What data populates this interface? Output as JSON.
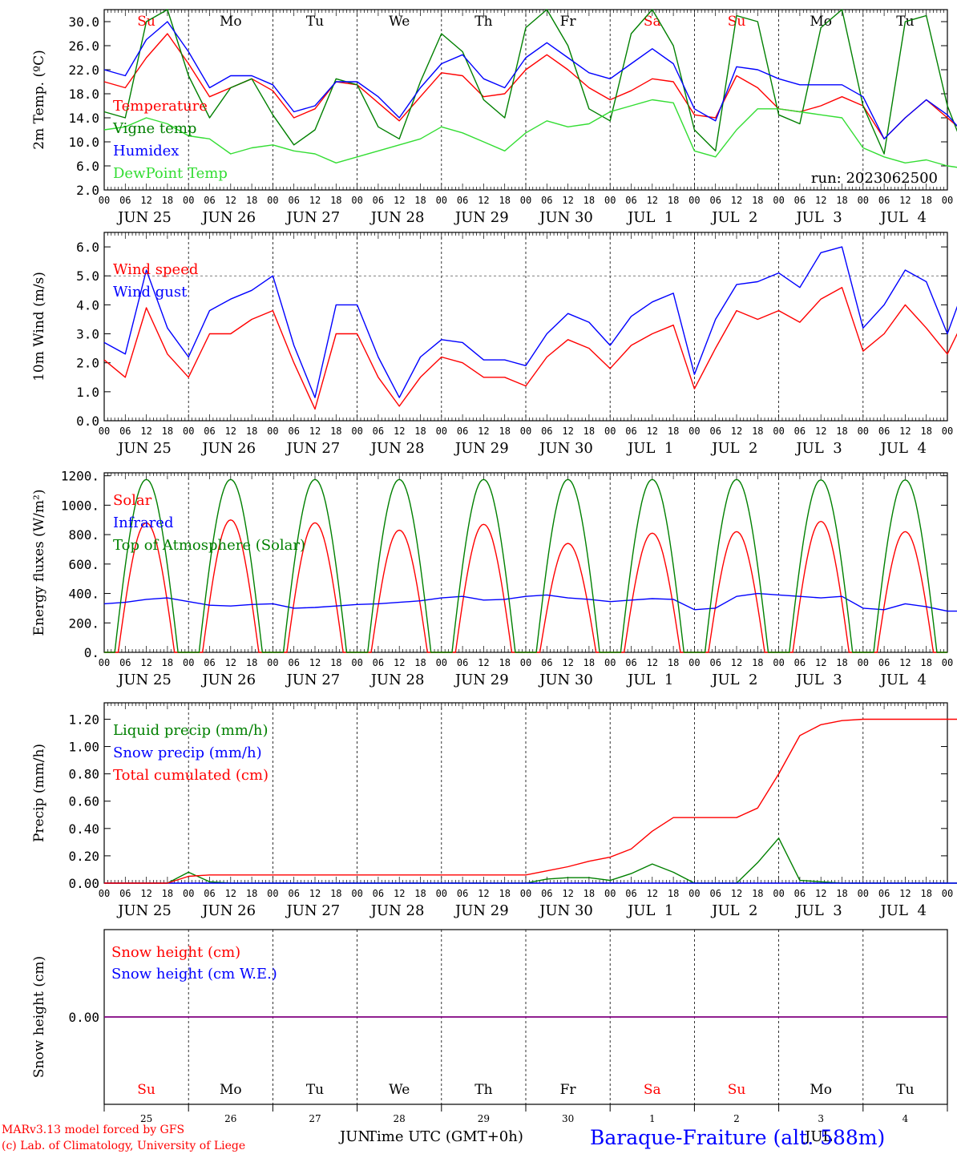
{
  "footer": {
    "model_line1": "MARv3.13 model forced by GFS",
    "model_line2": "(c) Lab. of Climatology, University of Liege",
    "xaxis_title": "Time UTC (GMT+0h)",
    "month_left": "JUN",
    "month_right": "JUL",
    "station": "Baraque-Fraiture (alt. 588m)"
  },
  "colors": {
    "red": "#ff0000",
    "green": "#008000",
    "blue": "#0000ff",
    "light_green": "#33dd33",
    "purple": "#800080",
    "axis": "#000000"
  },
  "chart_data": [
    {
      "type": "line",
      "panel": "temperature",
      "ylabel": "2m Temp. (ºC)",
      "ylim": [
        2.0,
        32.0
      ],
      "yticks": [
        2.0,
        6.0,
        10.0,
        14.0,
        18.0,
        22.0,
        26.0,
        30.0
      ],
      "yticklabels": [
        "2.0",
        "6.0",
        "10.0",
        "14.0",
        "18.0",
        "22.0",
        "26.0",
        "30.0"
      ],
      "hline": null,
      "run_label": "run: 2023062500",
      "day_names": [
        "Su",
        "Mo",
        "Tu",
        "We",
        "Th",
        "Fr",
        "Sa",
        "Su",
        "Mo",
        "Tu"
      ],
      "day_name_colors": [
        "#ff0000",
        "#000000",
        "#000000",
        "#000000",
        "#000000",
        "#000000",
        "#ff0000",
        "#ff0000",
        "#000000",
        "#000000"
      ],
      "hour_ticks": [
        "00",
        "06",
        "12",
        "18"
      ],
      "date_labels": [
        "JUN 25",
        "JUN 26",
        "JUN 27",
        "JUN 28",
        "JUN 29",
        "JUN 30",
        "JUL  1",
        "JUL  2",
        "JUL  3",
        "JUL  4"
      ],
      "x_hours_step": 6,
      "series": [
        {
          "name": "Temperature",
          "color": "#ff0000",
          "values": [
            20.0,
            19.0,
            24.0,
            28.0,
            23.0,
            17.5,
            19.0,
            20.5,
            18.5,
            14.0,
            15.5,
            20.0,
            19.5,
            16.5,
            13.5,
            17.5,
            21.5,
            21.0,
            17.5,
            18.0,
            22.0,
            24.5,
            22.0,
            19.0,
            17.0,
            18.5,
            20.5,
            20.0,
            14.5,
            14.0,
            21.0,
            19.0,
            15.5,
            15.0,
            16.0,
            17.5,
            16.0,
            10.5,
            14.0,
            17.0,
            14.0,
            11.0,
            15.0,
            20.0,
            17.5
          ]
        },
        {
          "name": "Vigne temp",
          "color": "#008000",
          "values": [
            15.0,
            14.0,
            30.0,
            32.0,
            21.0,
            14.0,
            19.0,
            20.5,
            14.5,
            9.5,
            12.0,
            20.5,
            19.5,
            12.5,
            10.5,
            20.0,
            28.0,
            25.0,
            17.0,
            14.0,
            29.0,
            32.0,
            26.0,
            15.5,
            13.5,
            28.0,
            32.0,
            26.0,
            12.0,
            8.5,
            31.0,
            30.0,
            14.5,
            13.0,
            29.0,
            32.0,
            16.0,
            8.0,
            30.0,
            31.0,
            16.0,
            7.0,
            32.0,
            30.0,
            16.0
          ]
        },
        {
          "name": "Humidex",
          "color": "#0000ff",
          "values": [
            22.0,
            21.0,
            27.0,
            30.0,
            25.0,
            19.0,
            21.0,
            21.0,
            19.5,
            15.0,
            16.0,
            20.0,
            20.0,
            17.5,
            14.0,
            19.0,
            23.0,
            24.5,
            20.5,
            19.0,
            24.0,
            26.5,
            24.0,
            21.5,
            20.5,
            23.0,
            25.5,
            23.0,
            15.5,
            13.5,
            22.5,
            22.0,
            20.5,
            19.5,
            19.5,
            19.5,
            17.5,
            10.5,
            14.0,
            17.0,
            14.5,
            10.5,
            15.0,
            21.0,
            18.5
          ]
        },
        {
          "name": "DewPoint Temp",
          "color": "#33dd33",
          "values": [
            12.0,
            12.5,
            14.0,
            13.0,
            11.0,
            10.5,
            8.0,
            9.0,
            9.5,
            8.5,
            8.0,
            6.5,
            7.5,
            8.5,
            9.5,
            10.5,
            12.5,
            11.5,
            10.0,
            8.5,
            11.5,
            13.5,
            12.5,
            13.0,
            15.0,
            16.0,
            17.0,
            16.5,
            8.5,
            7.5,
            12.0,
            15.5,
            15.5,
            15.0,
            14.5,
            14.0,
            9.0,
            7.5,
            6.5,
            7.0,
            6.0,
            5.5,
            8.0,
            12.0,
            14.0
          ]
        }
      ]
    },
    {
      "type": "line",
      "panel": "wind",
      "ylabel": "10m Wind (m/s)",
      "ylim": [
        0.0,
        6.5
      ],
      "yticks": [
        0.0,
        1.0,
        2.0,
        3.0,
        4.0,
        5.0,
        6.0
      ],
      "yticklabels": [
        "0.0",
        "1.0",
        "2.0",
        "3.0",
        "4.0",
        "5.0",
        "6.0"
      ],
      "hline": 5.0,
      "hour_ticks": [
        "00",
        "06",
        "12",
        "18"
      ],
      "date_labels": [
        "JUN 25",
        "JUN 26",
        "JUN 27",
        "JUN 28",
        "JUN 29",
        "JUN 30",
        "JUL  1",
        "JUL  2",
        "JUL  3",
        "JUL  4"
      ],
      "x_hours_step": 6,
      "series": [
        {
          "name": "Wind speed",
          "color": "#ff0000",
          "values": [
            2.1,
            1.5,
            3.9,
            2.3,
            1.5,
            3.0,
            3.0,
            3.5,
            3.8,
            2.0,
            0.4,
            3.0,
            3.0,
            1.5,
            0.5,
            1.5,
            2.2,
            2.0,
            1.5,
            1.5,
            1.2,
            2.2,
            2.8,
            2.5,
            1.8,
            2.6,
            3.0,
            3.3,
            1.1,
            2.5,
            3.8,
            3.5,
            3.8,
            3.4,
            4.2,
            4.6,
            2.4,
            3.0,
            4.0,
            3.2,
            2.3,
            3.8,
            4.9,
            4.8,
            2.0
          ]
        },
        {
          "name": "Wind gust",
          "color": "#0000ff",
          "values": [
            2.7,
            2.3,
            5.2,
            3.2,
            2.2,
            3.8,
            4.2,
            4.5,
            5.0,
            2.6,
            0.8,
            4.0,
            4.0,
            2.2,
            0.8,
            2.2,
            2.8,
            2.7,
            2.1,
            2.1,
            1.9,
            3.0,
            3.7,
            3.4,
            2.6,
            3.6,
            4.1,
            4.4,
            1.6,
            3.5,
            4.7,
            4.8,
            5.1,
            4.6,
            5.8,
            6.0,
            3.2,
            4.0,
            5.2,
            4.8,
            3.0,
            5.0,
            6.3,
            5.8,
            2.7
          ]
        }
      ]
    },
    {
      "type": "line",
      "panel": "energy",
      "ylabel": "Energy fluxes (W/m²)",
      "ylim": [
        0,
        1220
      ],
      "yticks": [
        0,
        200,
        400,
        600,
        800,
        1000,
        1200
      ],
      "yticklabels": [
        "0.",
        "200.",
        "400.",
        "600.",
        "800.",
        "1000.",
        "1200."
      ],
      "hline": null,
      "hour_ticks": [
        "00",
        "06",
        "12",
        "18"
      ],
      "date_labels": [
        "JUN 25",
        "JUN 26",
        "JUN 27",
        "JUN 28",
        "JUN 29",
        "JUN 30",
        "JUL  1",
        "JUL  2",
        "JUL  3",
        "JUL  4"
      ],
      "x_hours_step": 6,
      "series": [
        {
          "name": "Solar",
          "color": "#ff0000",
          "daily_peaks": [
            880,
            900,
            880,
            830,
            870,
            740,
            810,
            820,
            890,
            820
          ],
          "daylight_hours": [
            4,
            20
          ]
        },
        {
          "name": "Infrared",
          "color": "#0000ff",
          "values": [
            330,
            340,
            360,
            370,
            345,
            320,
            315,
            325,
            330,
            300,
            305,
            315,
            325,
            330,
            340,
            350,
            370,
            380,
            355,
            360,
            380,
            390,
            370,
            360,
            345,
            355,
            365,
            360,
            290,
            300,
            380,
            400,
            390,
            380,
            370,
            380,
            300,
            290,
            330,
            310,
            280,
            280,
            310,
            370,
            350
          ]
        },
        {
          "name": "Top of Atmosphere (Solar)",
          "color": "#008000",
          "daily_peaks": [
            1175,
            1175,
            1175,
            1175,
            1175,
            1175,
            1175,
            1175,
            1172,
            1172
          ],
          "daylight_hours": [
            3,
            21
          ]
        }
      ]
    },
    {
      "type": "line",
      "panel": "precip",
      "ylabel": "Precip (mm/h)",
      "ylim": [
        0.0,
        1.32
      ],
      "yticks": [
        0.0,
        0.2,
        0.4,
        0.6,
        0.8,
        1.0,
        1.2
      ],
      "yticklabels": [
        "0.00",
        "0.20",
        "0.40",
        "0.60",
        "0.80",
        "1.00",
        "1.20"
      ],
      "hline": null,
      "hour_ticks": [
        "00",
        "06",
        "12",
        "18"
      ],
      "date_labels": [
        "JUN 25",
        "JUN 26",
        "JUN 27",
        "JUN 28",
        "JUN 29",
        "JUN 30",
        "JUL  1",
        "JUL  2",
        "JUL  3",
        "JUL  4"
      ],
      "x_hours_step": 6,
      "series": [
        {
          "name": "Liquid precip (mm/h)",
          "color": "#008000",
          "values": [
            0,
            0,
            0,
            0,
            0.08,
            0.01,
            0,
            0,
            0,
            0,
            0,
            0,
            0,
            0,
            0,
            0,
            0,
            0,
            0,
            0,
            0,
            0.03,
            0.04,
            0.04,
            0.02,
            0.07,
            0.14,
            0.08,
            0,
            0,
            0,
            0.15,
            0.33,
            0.02,
            0.01,
            0,
            0,
            0,
            0,
            0,
            0,
            0,
            0,
            0.06,
            0
          ]
        },
        {
          "name": "Snow precip (mm/h)",
          "color": "#0000ff",
          "values": [
            0,
            0,
            0,
            0,
            0,
            0,
            0,
            0,
            0,
            0,
            0,
            0,
            0,
            0,
            0,
            0,
            0,
            0,
            0,
            0,
            0,
            0,
            0,
            0,
            0,
            0,
            0,
            0,
            0,
            0,
            0,
            0,
            0,
            0,
            0,
            0,
            0,
            0,
            0,
            0,
            0,
            0,
            0,
            0,
            0
          ]
        },
        {
          "name": "Total cumulated (cm)",
          "color": "#ff0000",
          "values": [
            0,
            0,
            0,
            0,
            0.05,
            0.06,
            0.06,
            0.06,
            0.06,
            0.06,
            0.06,
            0.06,
            0.06,
            0.06,
            0.06,
            0.06,
            0.06,
            0.06,
            0.06,
            0.06,
            0.06,
            0.09,
            0.12,
            0.16,
            0.19,
            0.25,
            0.38,
            0.48,
            0.48,
            0.48,
            0.48,
            0.55,
            0.8,
            1.08,
            1.16,
            1.19,
            1.2,
            1.2,
            1.2,
            1.2,
            1.2,
            1.2,
            1.2,
            1.21,
            1.21
          ]
        }
      ]
    },
    {
      "type": "line",
      "panel": "snow",
      "ylabel": "Snow height (cm)",
      "ylim": [
        -1.0,
        1.0
      ],
      "yticks": [
        0.0
      ],
      "yticklabels": [
        "0.00"
      ],
      "hline": null,
      "day_names": [
        "Su",
        "Mo",
        "Tu",
        "We",
        "Th",
        "Fr",
        "Sa",
        "Su",
        "Mo",
        "Tu"
      ],
      "day_name_colors": [
        "#ff0000",
        "#000000",
        "#000000",
        "#000000",
        "#000000",
        "#000000",
        "#ff0000",
        "#ff0000",
        "#000000",
        "#000000"
      ],
      "day_numbers": [
        "25",
        "26",
        "27",
        "28",
        "29",
        "30",
        "1",
        "2",
        "3",
        "4"
      ],
      "series": [
        {
          "name": "Snow height (cm)",
          "color": "#ff0000",
          "values": [
            0,
            0
          ]
        },
        {
          "name": "Snow height (cm W.E.)",
          "color": "#0000ff",
          "values": [
            0,
            0
          ]
        }
      ]
    }
  ]
}
